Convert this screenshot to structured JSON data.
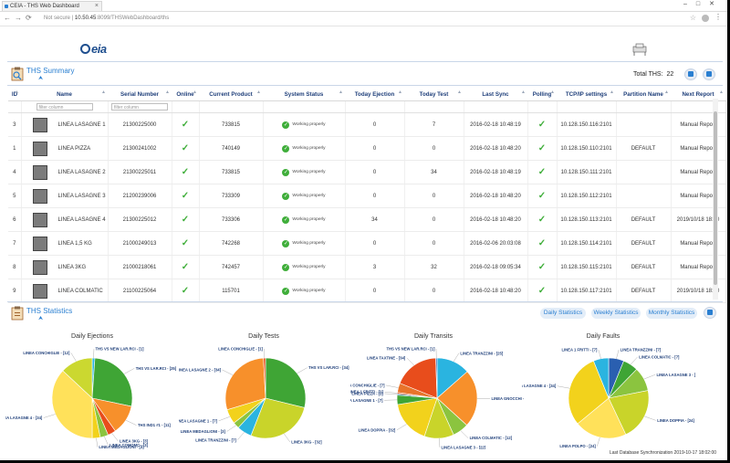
{
  "browser": {
    "tab_title": "CEIA - THS Web Dashboard",
    "url_prefix": "Not secure",
    "url_host": "10.50.45",
    "url_path": ":8099/THSWebDashboard/ths",
    "back_icon": "arrow-left-icon",
    "forward_icon": "arrow-right-icon",
    "reload_icon": "reload-icon"
  },
  "logo_text": "eia",
  "summary": {
    "title": "THS Summary",
    "total_label": "Total THS:",
    "total_value": "22"
  },
  "table": {
    "headers": [
      "ID",
      "Name",
      "Serial Number",
      "Online",
      "Current Product",
      "System Status",
      "Today Ejection",
      "Today Test",
      "Last Sync",
      "Polling",
      "TCP/IP settings",
      "Partition Name",
      "Next Report"
    ],
    "filter_placeholder": "filter column",
    "filter_placeholder2": "filter column",
    "status_text": "Working properly",
    "rows": [
      {
        "id": "3",
        "name": "LINEA LASAGNE 1",
        "serial": "21300225000",
        "product": "733815",
        "ejection": "0",
        "test": "7",
        "sync": "2016-02-18 10:48:19",
        "tcp": "10.128.150.116:2101",
        "partition": "",
        "next": "Manual Report"
      },
      {
        "id": "1",
        "name": "LINEA PIZZA",
        "serial": "21300241002",
        "product": "740149",
        "ejection": "0",
        "test": "0",
        "sync": "2016-02-18 10:48:20",
        "tcp": "10.128.150.110:2101",
        "partition": "DEFAULT",
        "next": "Manual Report"
      },
      {
        "id": "4",
        "name": "LINEA LASAGNE 2",
        "serial": "21300225011",
        "product": "733815",
        "ejection": "0",
        "test": "34",
        "sync": "2016-02-18 10:48:19",
        "tcp": "10.128.150.111:2101",
        "partition": "",
        "next": "Manual Report"
      },
      {
        "id": "5",
        "name": "LINEA LASAGNE 3",
        "serial": "21200239006",
        "product": "733309",
        "ejection": "0",
        "test": "0",
        "sync": "2016-02-18 10:48:20",
        "tcp": "10.128.150.112:2101",
        "partition": "",
        "next": "Manual Report"
      },
      {
        "id": "6",
        "name": "LINEA LASAGNE 4",
        "serial": "21300225012",
        "product": "733306",
        "ejection": "34",
        "test": "0",
        "sync": "2016-02-18 10:48:20",
        "tcp": "10.128.150.113:2101",
        "partition": "DEFAULT",
        "next": "2019/10/18 18:00"
      },
      {
        "id": "7",
        "name": "LINEA 1,5 KG",
        "serial": "21000249013",
        "product": "742268",
        "ejection": "0",
        "test": "0",
        "sync": "2016-02-06 20:03:08",
        "tcp": "10.128.150.114:2101",
        "partition": "DEFAULT",
        "next": "Manual Report"
      },
      {
        "id": "8",
        "name": "LINEA 3KG",
        "serial": "21000218061",
        "product": "742457",
        "ejection": "3",
        "test": "32",
        "sync": "2016-02-18 09:05:34",
        "tcp": "10.128.150.115:2101",
        "partition": "DEFAULT",
        "next": "Manual Report"
      },
      {
        "id": "9",
        "name": "LINEA COLMATIC",
        "serial": "21100225064",
        "product": "115701",
        "ejection": "0",
        "test": "0",
        "sync": "2016-02-18 10:48:20",
        "tcp": "10.128.150.117:2101",
        "partition": "DEFAULT",
        "next": "2019/10/18 18:00"
      }
    ]
  },
  "stats": {
    "title": "THS Statistics",
    "buttons": [
      "Daily Statistics",
      "Weekly Statistics",
      "Monthly Statistics"
    ],
    "footer": "Last Database Synchronization 2019-10-17 18:02:00"
  },
  "chart_data": [
    {
      "type": "pie",
      "title": "Daily Ejections",
      "slices": [
        {
          "label": "THS VS NEW LAR.RCI - [1]",
          "value": 1,
          "color": "#2ab4e0"
        },
        {
          "label": "THS VS LAR.RCI - [25]",
          "value": 25,
          "color": "#3fa535"
        },
        {
          "label": "THS IND1 #1 - [11]",
          "value": 11,
          "color": "#f7902b"
        },
        {
          "label": "LINEA 3KG - [3]",
          "value": 3,
          "color": "#e84d1c"
        },
        {
          "label": "LINEA COMOMC - [3]",
          "value": 3,
          "color": "#8bc43f"
        },
        {
          "label": "LINEA MEDAGLIONI - [3]",
          "value": 3,
          "color": "#f2d21c"
        },
        {
          "label": "LINEA LASAGNE 4 - [34]",
          "value": 34,
          "color": "#ffe15a"
        },
        {
          "label": "LINEA CONCHIGLIE - [12]",
          "value": 12,
          "color": "#cbd830"
        }
      ]
    },
    {
      "type": "pie",
      "title": "Daily Tests",
      "slices": [
        {
          "label": "THS VS LAR.RCI - [34]",
          "value": 34,
          "color": "#3fa535"
        },
        {
          "label": "LINEA 3KG - [32]",
          "value": 32,
          "color": "#c9d42a"
        },
        {
          "label": "LINEA TRANZZINI - [7]",
          "value": 7,
          "color": "#2ab4e0"
        },
        {
          "label": "LINEA MEDAGLIONI - [3]",
          "value": 3,
          "color": "#8bc43f"
        },
        {
          "label": "LINEA LASAGNE 1 - [7]",
          "value": 7,
          "color": "#f2d21c"
        },
        {
          "label": "LINEA LASAGNE 2 - [34]",
          "value": 34,
          "color": "#f7902b"
        },
        {
          "label": "LINEA CONCHIGLIE - [1]",
          "value": 1,
          "color": "#e84d1c"
        }
      ]
    },
    {
      "type": "pie",
      "title": "Daily Transits",
      "slices": [
        {
          "label": "LINEA TRANZZINI - [25]",
          "value": 25,
          "color": "#2ab4e0"
        },
        {
          "label": "LINEA GNOCCHI - [43]",
          "value": 43,
          "color": "#f7902b"
        },
        {
          "label": "LINEA COLMATIC - [12]",
          "value": 12,
          "color": "#8bc43f"
        },
        {
          "label": "LINEA LASAGNE 3 - [22]",
          "value": 22,
          "color": "#c9d42a"
        },
        {
          "label": "LINEA DOPPIA - [32]",
          "value": 32,
          "color": "#f2d21c"
        },
        {
          "label": "LINEA LASAGNE 1 - [7]",
          "value": 7,
          "color": "#3fa535"
        },
        {
          "label": "LINEA PIZZA - [1]",
          "value": 1,
          "color": "#1f7a9a"
        },
        {
          "label": "LINEA 1 FRITTI - [1]",
          "value": 1,
          "color": "#e84d1c"
        },
        {
          "label": "LINEA CONCHIGLIE - [7]",
          "value": 7,
          "color": "#e8742b"
        },
        {
          "label": "LINEA TAXTINE - [34]",
          "value": 34,
          "color": "#e84d1c"
        },
        {
          "label": "THS VS NEW LAR.RCI - [1]",
          "value": 1,
          "color": "#2a5fb0"
        }
      ]
    },
    {
      "type": "pie",
      "title": "Daily Faults",
      "slices": [
        {
          "label": "LINEA TRANZZINI - [7]",
          "value": 7,
          "color": "#2a5fb0"
        },
        {
          "label": "LINEA COLMATIC - [7]",
          "value": 7,
          "color": "#3fa535"
        },
        {
          "label": "LINEA LASAGNE 3 - [11]",
          "value": 11,
          "color": "#8bc43f"
        },
        {
          "label": "LINEA DOPPIA - [24]",
          "value": 24,
          "color": "#c9d42a"
        },
        {
          "label": "LINEA POLPO - [24]",
          "value": 24,
          "color": "#ffe15a"
        },
        {
          "label": "LINEA LASAGNE 4 - [34]",
          "value": 34,
          "color": "#f2d21c"
        },
        {
          "label": "LINEA 1 FRITTI - [7]",
          "value": 7,
          "color": "#2ab4e0"
        }
      ]
    }
  ]
}
